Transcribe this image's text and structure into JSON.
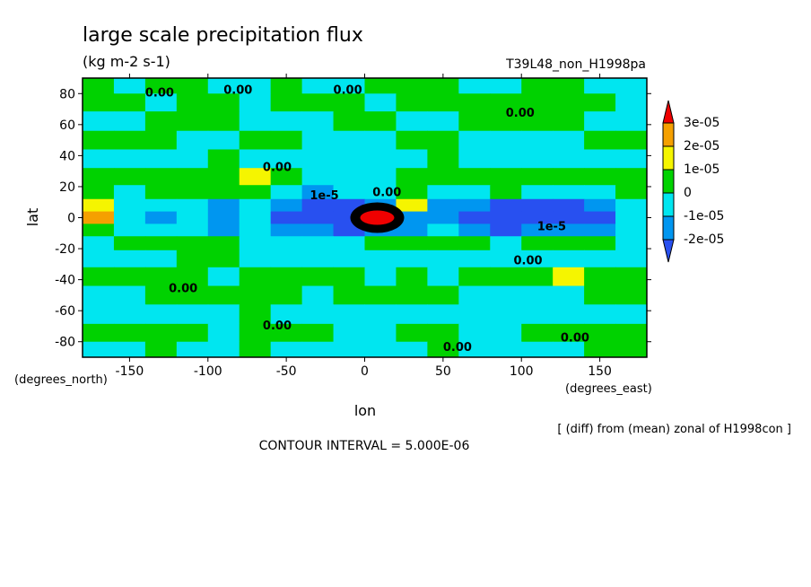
{
  "chart_data": {
    "type": "heatmap",
    "title": "large scale precipitation flux",
    "units": "(kg m-2 s-1)",
    "run_label": "T39L48_non_H1998pa",
    "xlabel": "lon",
    "ylabel": "lat",
    "x_units_label": "(degrees_east)",
    "y_units_label": "(degrees_north)",
    "xlim": [
      -180,
      180
    ],
    "ylim": [
      -90,
      90
    ],
    "x_ticks": [
      -150,
      -100,
      -50,
      0,
      50,
      100,
      150
    ],
    "y_ticks": [
      -80,
      -60,
      -40,
      -20,
      0,
      20,
      40,
      60,
      80
    ],
    "x_tick_labels": [
      "-150",
      "-100",
      "-50",
      "0",
      "50",
      "100",
      "150"
    ],
    "y_tick_labels": [
      "-80",
      "-60",
      "-40",
      "-20",
      "0",
      "20",
      "40",
      "60",
      "80"
    ],
    "colorbar": {
      "labels": [
        "3e-05",
        "2e-05",
        "1e-05",
        "0",
        "-1e-05",
        "-2e-05"
      ],
      "levels": [
        3e-05,
        2e-05,
        1e-05,
        0,
        -1e-05,
        -2e-05
      ],
      "colors": [
        "#f00000",
        "#f5a000",
        "#f5f500",
        "#00d200",
        "#00e6f0",
        "#0096f0",
        "#2850f0"
      ]
    },
    "contour_labels": [
      "0.00",
      "1e-5"
    ],
    "footnote": "[ (diff) from (mean) zonal of H1998con ]",
    "contour_interval": "CONTOUR INTERVAL = 5.000E-06",
    "bands_note": "approximate anomaly field sampled on a coarse lat/lon grid",
    "lat_bands": [
      85,
      75,
      62,
      50,
      38,
      26,
      16,
      8,
      0,
      -8,
      -16,
      -26,
      -38,
      -50,
      -62,
      -75,
      -85
    ],
    "lon_cells": [
      -170,
      -150,
      -130,
      -110,
      -90,
      -70,
      -50,
      -30,
      -10,
      10,
      30,
      50,
      70,
      90,
      110,
      130,
      150,
      170
    ],
    "values": [
      [
        0,
        -0.5,
        0,
        0,
        -0.5,
        -0.5,
        0,
        -0.5,
        -0.5,
        0,
        0,
        0,
        -0.5,
        -0.5,
        0,
        0,
        -0.5,
        -0.5
      ],
      [
        0,
        0,
        -0.5,
        0,
        0,
        -0.5,
        0,
        0,
        0,
        -0.5,
        0,
        0,
        0,
        0,
        0,
        0,
        0,
        -0.5
      ],
      [
        -0.5,
        -0.5,
        0,
        0,
        0,
        -0.5,
        -0.5,
        -0.5,
        0,
        0,
        -0.5,
        -0.5,
        0,
        0,
        0,
        0,
        -0.5,
        -0.5
      ],
      [
        0,
        0,
        0,
        -0.5,
        -0.5,
        0,
        0,
        -0.5,
        -0.5,
        -0.5,
        0,
        0,
        -0.5,
        -0.5,
        -0.5,
        -0.5,
        0,
        0
      ],
      [
        -0.5,
        -0.5,
        -0.5,
        -0.5,
        0,
        -0.5,
        -0.5,
        -0.5,
        -0.5,
        -0.5,
        -0.5,
        0,
        -0.5,
        -0.5,
        -0.5,
        -0.5,
        -0.5,
        -0.5
      ],
      [
        0,
        0,
        0,
        0,
        0,
        0.5,
        0,
        -0.5,
        -0.5,
        -0.5,
        0,
        0,
        0,
        0,
        0,
        0,
        0,
        0
      ],
      [
        0,
        -0.5,
        0,
        0,
        0,
        0,
        -0.5,
        -1,
        -0.5,
        -0.5,
        0,
        -0.5,
        -0.5,
        0,
        -0.5,
        -0.5,
        -0.5,
        0
      ],
      [
        0.5,
        -0.5,
        -0.5,
        -0.5,
        -1,
        -0.5,
        -1,
        -1.5,
        -1.5,
        -1,
        0.5,
        -1,
        -1,
        -1.5,
        -1.5,
        -1.5,
        -1,
        -0.5
      ],
      [
        1,
        -0.5,
        -1,
        -0.5,
        -1,
        -0.5,
        -1.5,
        -1.5,
        -2,
        3.5,
        -1,
        -1,
        -1.5,
        -2,
        -1.5,
        -1.5,
        -1.5,
        -0.5
      ],
      [
        0,
        -0.5,
        -0.5,
        -0.5,
        -1,
        -0.5,
        -1,
        -1,
        -1.5,
        -1,
        -1,
        -0.5,
        -1,
        -1.5,
        -1,
        -1,
        -1,
        -0.5
      ],
      [
        -0.5,
        0,
        0,
        0,
        0,
        -0.5,
        -0.5,
        -0.5,
        -0.5,
        0,
        0,
        0,
        0,
        -0.5,
        0,
        0,
        0,
        -0.5
      ],
      [
        -0.5,
        -0.5,
        -0.5,
        0,
        0,
        -0.5,
        -0.5,
        -0.5,
        -0.5,
        -0.5,
        -0.5,
        -0.5,
        -0.5,
        -0.5,
        -0.5,
        -0.5,
        -0.5,
        -0.5
      ],
      [
        0,
        0,
        0,
        0,
        -0.5,
        0,
        0,
        0,
        0,
        -0.5,
        0,
        -0.5,
        0,
        0,
        0,
        0.5,
        0,
        0
      ],
      [
        -0.5,
        -0.5,
        0,
        0,
        0,
        0,
        0,
        -0.5,
        0,
        0,
        0,
        0,
        -0.5,
        -0.5,
        -0.5,
        -0.5,
        0,
        0
      ],
      [
        -0.5,
        -0.5,
        -0.5,
        -0.5,
        -0.5,
        0,
        -0.5,
        -0.5,
        -0.5,
        -0.5,
        -0.5,
        -0.5,
        -0.5,
        -0.5,
        -0.5,
        -0.5,
        -0.5,
        -0.5
      ],
      [
        0,
        0,
        0,
        0,
        -0.5,
        0,
        0,
        0,
        -0.5,
        -0.5,
        0,
        0,
        -0.5,
        -0.5,
        0,
        0,
        0,
        0
      ],
      [
        -0.5,
        -0.5,
        0,
        -0.5,
        -0.5,
        0,
        -0.5,
        -0.5,
        -0.5,
        -0.5,
        -0.5,
        0,
        -0.5,
        -0.5,
        -0.5,
        -0.5,
        0,
        0
      ]
    ]
  }
}
